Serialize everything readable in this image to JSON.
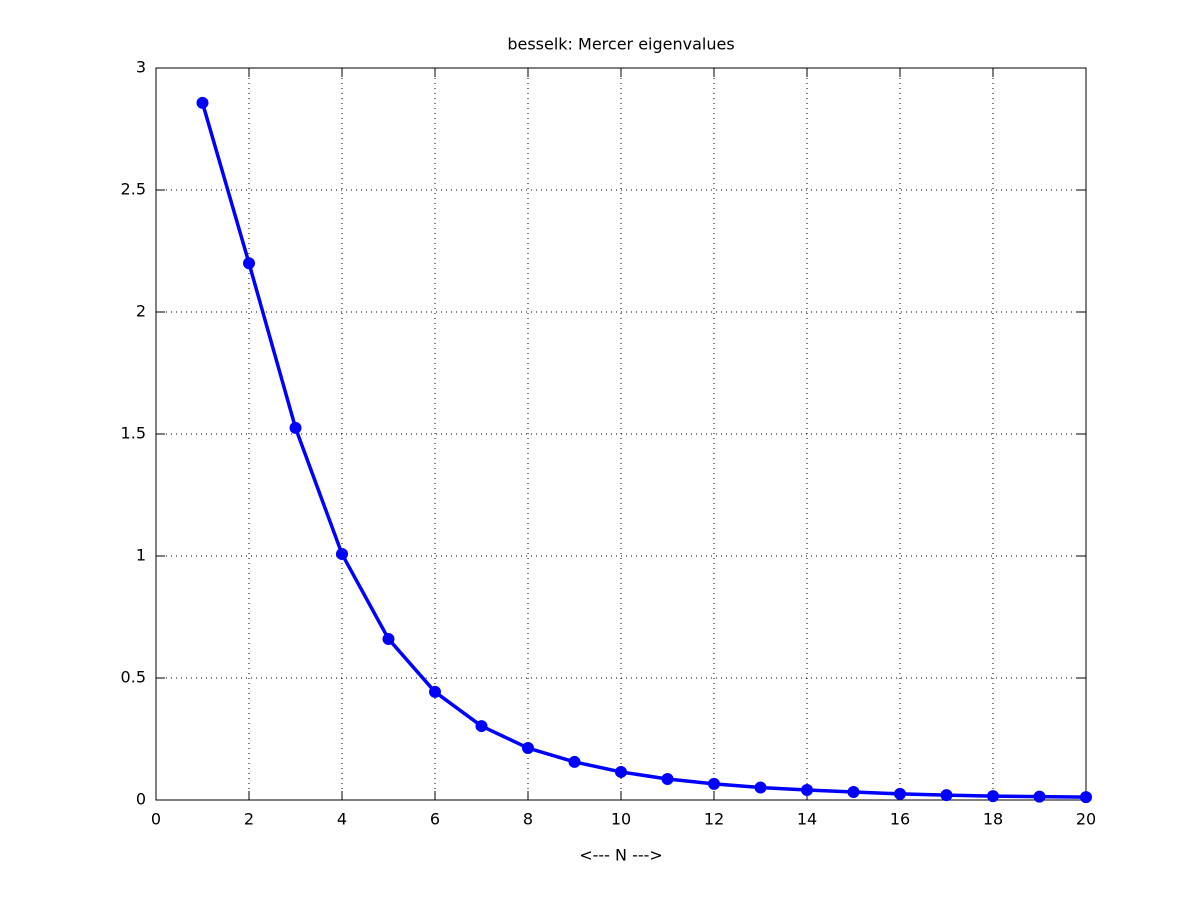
{
  "chart_data": {
    "type": "line",
    "title": "besselk: Mercer eigenvalues",
    "x_label": "<--- N --->",
    "x": [
      1,
      2,
      3,
      4,
      5,
      6,
      7,
      8,
      9,
      10,
      11,
      12,
      13,
      14,
      15,
      16,
      17,
      18,
      19,
      20
    ],
    "values": [
      2.857,
      2.2,
      1.525,
      1.008,
      0.66,
      0.443,
      0.303,
      0.213,
      0.156,
      0.115,
      0.086,
      0.066,
      0.051,
      0.041,
      0.033,
      0.025,
      0.02,
      0.016,
      0.014,
      0.012
    ],
    "color": "#0000ff",
    "markers": true,
    "xlim": [
      0,
      20
    ],
    "xticks": [
      0,
      2,
      4,
      6,
      8,
      10,
      12,
      14,
      16,
      18,
      20
    ],
    "ylim": [
      0,
      3
    ],
    "yticks": [
      0,
      0.5,
      1,
      1.5,
      2,
      2.5,
      3
    ],
    "grid": true
  }
}
